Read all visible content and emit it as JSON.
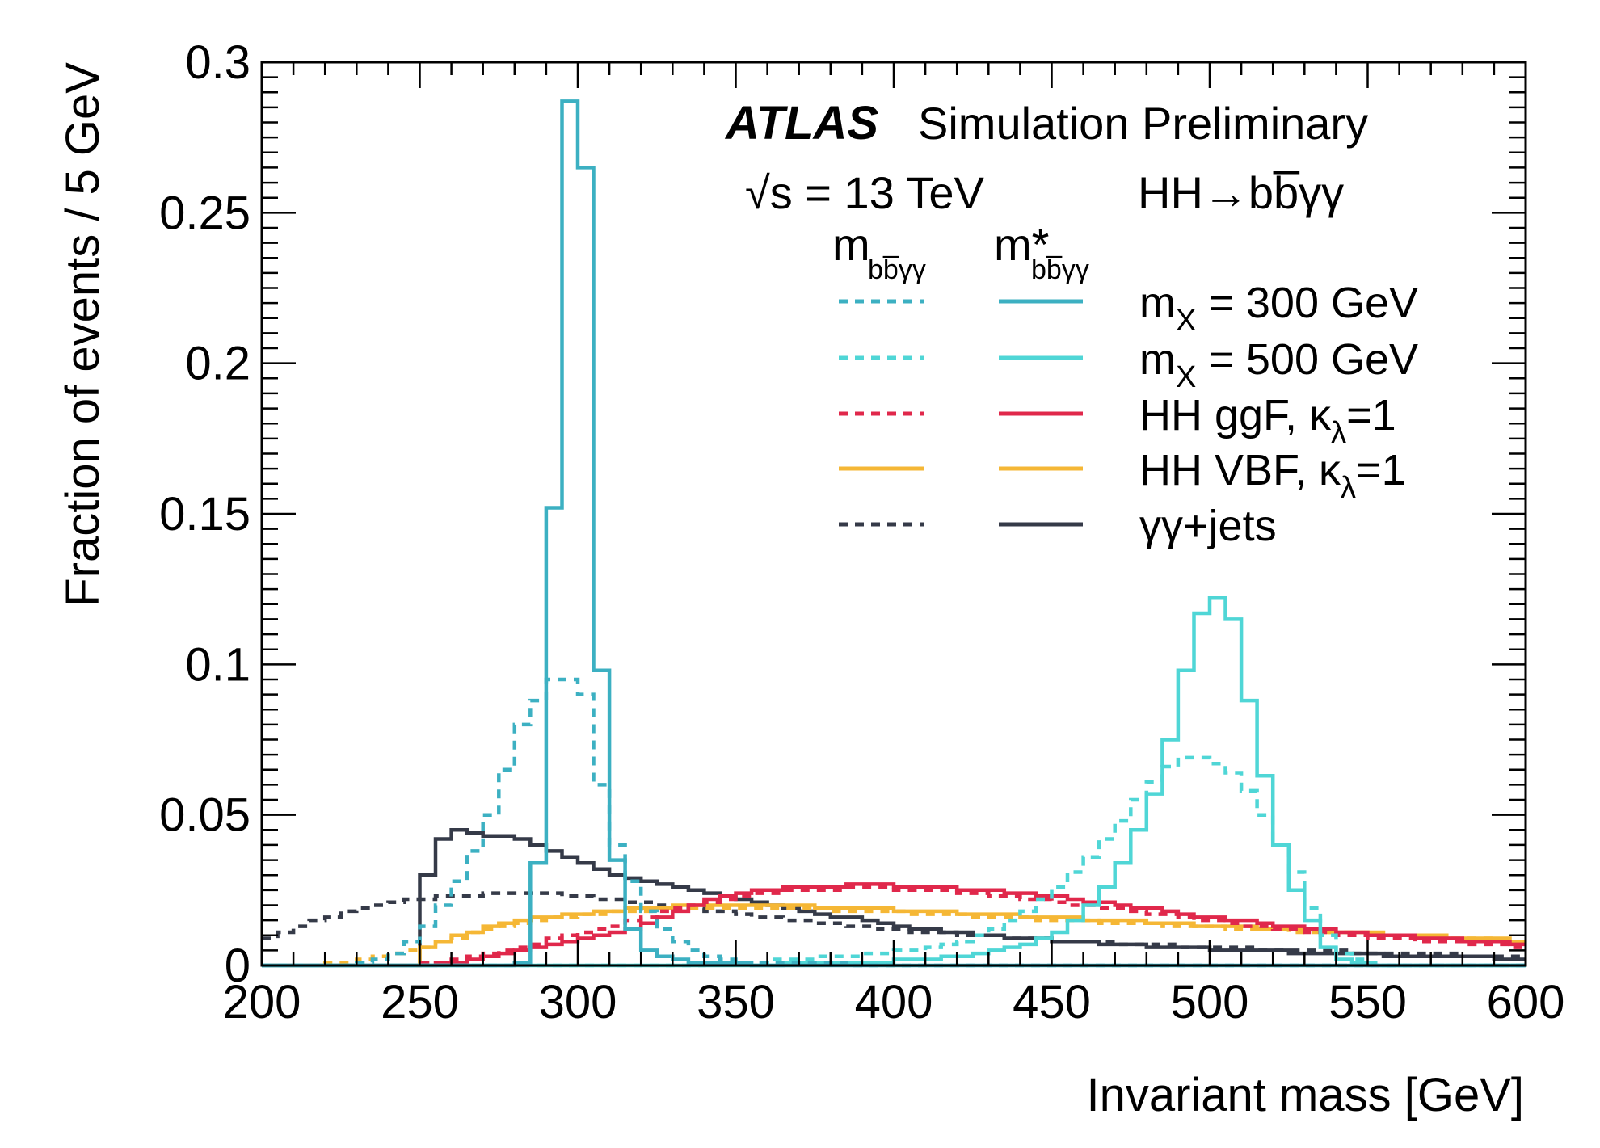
{
  "chart_data": {
    "type": "line",
    "xlabel": "Invariant mass [GeV]",
    "ylabel": "Fraction of events / 5 GeV",
    "xlim": [
      200,
      600
    ],
    "ylim": [
      0,
      0.3
    ],
    "x_ticks": [
      "200",
      "250",
      "300",
      "350",
      "400",
      "450",
      "500",
      "550",
      "600"
    ],
    "y_ticks": [
      "0",
      "0.05",
      "0.1",
      "0.15",
      "0.2",
      "0.25",
      "0.3"
    ],
    "annotations": {
      "atlas": "ATLAS",
      "label": "Simulation Preliminary",
      "energy": "√s = 13 TeV",
      "process": "HH→bb̅γγ",
      "col_dashed": "m",
      "col_dashed_sub": "bb̅γγ",
      "col_solid": "m*",
      "col_solid_sub": "bb̅γγ"
    },
    "legend_position": "top-right",
    "x_centers": [
      202.5,
      207.5,
      212.5,
      217.5,
      222.5,
      227.5,
      232.5,
      237.5,
      242.5,
      247.5,
      252.5,
      257.5,
      262.5,
      267.5,
      272.5,
      277.5,
      282.5,
      287.5,
      292.5,
      297.5,
      302.5,
      307.5,
      312.5,
      317.5,
      322.5,
      327.5,
      332.5,
      337.5,
      342.5,
      347.5,
      352.5,
      357.5,
      362.5,
      367.5,
      372.5,
      377.5,
      382.5,
      387.5,
      392.5,
      397.5,
      402.5,
      407.5,
      412.5,
      417.5,
      422.5,
      427.5,
      432.5,
      437.5,
      442.5,
      447.5,
      452.5,
      457.5,
      462.5,
      467.5,
      472.5,
      477.5,
      482.5,
      487.5,
      492.5,
      497.5,
      502.5,
      507.5,
      512.5,
      517.5,
      522.5,
      527.5,
      532.5,
      537.5,
      542.5,
      547.5,
      552.5,
      557.5,
      562.5,
      567.5,
      572.5,
      577.5,
      582.5,
      587.5,
      592.5,
      597.5
    ],
    "series": [
      {
        "name": "m_X = 300 GeV",
        "legend_main": "m",
        "legend_sub": "X",
        "legend_rest": " = 300 GeV",
        "color": "#3cb0c2",
        "dashed": [
          0,
          0,
          0,
          0,
          0,
          0,
          0.001,
          0.002,
          0.004,
          0.008,
          0.013,
          0.02,
          0.028,
          0.038,
          0.05,
          0.065,
          0.08,
          0.088,
          0.095,
          0.095,
          0.09,
          0.06,
          0.04,
          0.028,
          0.018,
          0.012,
          0.008,
          0.005,
          0.003,
          0.002,
          0.001,
          0.001,
          0.001,
          0.001,
          0.001,
          0.001,
          0.001,
          0,
          0,
          0,
          0,
          0,
          0,
          0,
          0,
          0,
          0,
          0,
          0,
          0,
          0,
          0,
          0,
          0,
          0,
          0,
          0,
          0,
          0,
          0,
          0,
          0,
          0,
          0,
          0,
          0,
          0,
          0,
          0,
          0,
          0,
          0,
          0,
          0,
          0,
          0,
          0,
          0,
          0,
          0
        ],
        "solid": [
          0,
          0,
          0,
          0,
          0,
          0,
          0,
          0,
          0,
          0,
          0,
          0,
          0,
          0,
          0,
          0,
          0.001,
          0.034,
          0.152,
          0.287,
          0.265,
          0.098,
          0.035,
          0.012,
          0.005,
          0.003,
          0.002,
          0.001,
          0.001,
          0.001,
          0.001,
          0,
          0,
          0,
          0,
          0,
          0,
          0,
          0,
          0,
          0,
          0,
          0,
          0,
          0,
          0,
          0,
          0,
          0,
          0,
          0,
          0,
          0,
          0,
          0,
          0,
          0,
          0,
          0,
          0,
          0,
          0,
          0,
          0,
          0,
          0,
          0,
          0,
          0,
          0,
          0,
          0,
          0,
          0,
          0,
          0,
          0,
          0,
          0,
          0
        ]
      },
      {
        "name": "m_X = 500 GeV",
        "legend_main": "m",
        "legend_sub": "X",
        "legend_rest": " = 500 GeV",
        "color": "#4fd6d6",
        "dashed": [
          0,
          0,
          0,
          0,
          0,
          0,
          0,
          0,
          0,
          0,
          0,
          0,
          0,
          0,
          0,
          0,
          0,
          0,
          0,
          0,
          0,
          0,
          0,
          0,
          0,
          0,
          0,
          0,
          0.001,
          0.001,
          0.001,
          0.001,
          0.002,
          0.002,
          0.002,
          0.003,
          0.003,
          0.003,
          0.004,
          0.004,
          0.005,
          0.005,
          0.006,
          0.007,
          0.008,
          0.01,
          0.012,
          0.015,
          0.018,
          0.022,
          0.026,
          0.031,
          0.036,
          0.042,
          0.048,
          0.055,
          0.061,
          0.066,
          0.069,
          0.069,
          0.067,
          0.064,
          0.058,
          0.05,
          0.04,
          0.031,
          0.019,
          0.01,
          0.004,
          0.002,
          0.001,
          0,
          0,
          0,
          0,
          0,
          0,
          0,
          0,
          0
        ],
        "solid": [
          0,
          0,
          0,
          0,
          0,
          0,
          0,
          0,
          0,
          0,
          0,
          0,
          0,
          0,
          0,
          0,
          0,
          0,
          0,
          0,
          0,
          0,
          0,
          0,
          0,
          0,
          0,
          0,
          0,
          0,
          0,
          0,
          0,
          0.001,
          0.001,
          0.001,
          0.001,
          0.001,
          0.001,
          0.001,
          0.002,
          0.002,
          0.002,
          0.003,
          0.003,
          0.004,
          0.005,
          0.006,
          0.007,
          0.009,
          0.011,
          0.015,
          0.02,
          0.026,
          0.034,
          0.045,
          0.057,
          0.075,
          0.098,
          0.117,
          0.122,
          0.115,
          0.088,
          0.063,
          0.04,
          0.025,
          0.015,
          0.006,
          0.002,
          0.001,
          0,
          0,
          0,
          0,
          0,
          0,
          0,
          0,
          0,
          0
        ]
      },
      {
        "name": "HH ggF, κ_λ=1",
        "legend_main": "HH ggF, κ",
        "legend_sub": "λ",
        "legend_rest": "=1",
        "color": "#e0284b",
        "dashed": [
          0,
          0,
          0,
          0,
          0,
          0,
          0,
          0,
          0,
          0,
          0.001,
          0.001,
          0.002,
          0.003,
          0.004,
          0.005,
          0.006,
          0.007,
          0.009,
          0.01,
          0.011,
          0.012,
          0.013,
          0.015,
          0.016,
          0.018,
          0.019,
          0.02,
          0.021,
          0.022,
          0.023,
          0.024,
          0.024,
          0.025,
          0.025,
          0.025,
          0.025,
          0.026,
          0.026,
          0.026,
          0.025,
          0.025,
          0.025,
          0.025,
          0.024,
          0.024,
          0.023,
          0.023,
          0.022,
          0.022,
          0.021,
          0.02,
          0.02,
          0.019,
          0.019,
          0.018,
          0.017,
          0.017,
          0.016,
          0.015,
          0.015,
          0.014,
          0.013,
          0.013,
          0.012,
          0.012,
          0.011,
          0.011,
          0.01,
          0.01,
          0.009,
          0.009,
          0.009,
          0.008,
          0.008,
          0.008,
          0.007,
          0.007,
          0.007,
          0.006
        ],
        "solid": [
          0,
          0,
          0,
          0,
          0,
          0,
          0,
          0,
          0,
          0,
          0,
          0.001,
          0.001,
          0.002,
          0.003,
          0.004,
          0.005,
          0.006,
          0.007,
          0.008,
          0.009,
          0.01,
          0.011,
          0.012,
          0.014,
          0.016,
          0.018,
          0.02,
          0.022,
          0.023,
          0.024,
          0.025,
          0.025,
          0.026,
          0.026,
          0.026,
          0.026,
          0.027,
          0.027,
          0.027,
          0.026,
          0.026,
          0.026,
          0.026,
          0.025,
          0.025,
          0.025,
          0.024,
          0.024,
          0.023,
          0.023,
          0.022,
          0.021,
          0.021,
          0.02,
          0.019,
          0.019,
          0.018,
          0.017,
          0.016,
          0.016,
          0.015,
          0.015,
          0.014,
          0.013,
          0.013,
          0.012,
          0.012,
          0.011,
          0.011,
          0.01,
          0.01,
          0.01,
          0.009,
          0.009,
          0.009,
          0.008,
          0.008,
          0.008,
          0.007
        ]
      },
      {
        "name": "HH VBF, κ_λ=1",
        "legend_main": "HH VBF, κ",
        "legend_sub": "λ",
        "legend_rest": "=1",
        "color": "#f5b735",
        "dashed": [
          0,
          0,
          0,
          0,
          0.001,
          0.001,
          0.002,
          0.003,
          0.004,
          0.005,
          0.006,
          0.008,
          0.009,
          0.011,
          0.012,
          0.013,
          0.014,
          0.015,
          0.016,
          0.016,
          0.017,
          0.017,
          0.018,
          0.018,
          0.018,
          0.019,
          0.019,
          0.019,
          0.019,
          0.019,
          0.019,
          0.019,
          0.019,
          0.019,
          0.019,
          0.019,
          0.018,
          0.018,
          0.018,
          0.018,
          0.018,
          0.017,
          0.017,
          0.017,
          0.017,
          0.016,
          0.016,
          0.016,
          0.016,
          0.015,
          0.015,
          0.015,
          0.015,
          0.014,
          0.014,
          0.014,
          0.014,
          0.013,
          0.013,
          0.013,
          0.013,
          0.012,
          0.012,
          0.012,
          0.012,
          0.011,
          0.011,
          0.011,
          0.011,
          0.011,
          0.01,
          0.01,
          0.01,
          0.01,
          0.009,
          0.009,
          0.009,
          0.009,
          0.008,
          0.008
        ],
        "solid": [
          0,
          0,
          0,
          0,
          0,
          0,
          0,
          0,
          0,
          0,
          0.006,
          0.008,
          0.01,
          0.011,
          0.013,
          0.014,
          0.015,
          0.016,
          0.016,
          0.017,
          0.017,
          0.018,
          0.018,
          0.019,
          0.019,
          0.019,
          0.02,
          0.02,
          0.02,
          0.02,
          0.02,
          0.02,
          0.02,
          0.02,
          0.02,
          0.019,
          0.019,
          0.019,
          0.019,
          0.019,
          0.018,
          0.018,
          0.018,
          0.018,
          0.017,
          0.017,
          0.017,
          0.017,
          0.016,
          0.016,
          0.016,
          0.016,
          0.015,
          0.015,
          0.015,
          0.015,
          0.014,
          0.014,
          0.014,
          0.013,
          0.013,
          0.013,
          0.013,
          0.012,
          0.012,
          0.012,
          0.012,
          0.011,
          0.011,
          0.011,
          0.011,
          0.01,
          0.01,
          0.01,
          0.01,
          0.009,
          0.009,
          0.009,
          0.009,
          0.008
        ]
      },
      {
        "name": "γγ+jets",
        "legend_main": "γγ+jets",
        "legend_sub": "",
        "legend_rest": "",
        "color": "#353a48",
        "dashed": [
          0.009,
          0.011,
          0.013,
          0.015,
          0.016,
          0.018,
          0.019,
          0.02,
          0.021,
          0.022,
          0.022,
          0.023,
          0.023,
          0.023,
          0.024,
          0.024,
          0.024,
          0.024,
          0.024,
          0.023,
          0.023,
          0.022,
          0.022,
          0.021,
          0.021,
          0.02,
          0.019,
          0.019,
          0.018,
          0.018,
          0.017,
          0.016,
          0.016,
          0.015,
          0.015,
          0.014,
          0.014,
          0.013,
          0.013,
          0.012,
          0.012,
          0.011,
          0.011,
          0.011,
          0.01,
          0.01,
          0.01,
          0.009,
          0.009,
          0.009,
          0.008,
          0.008,
          0.008,
          0.008,
          0.007,
          0.007,
          0.007,
          0.007,
          0.006,
          0.006,
          0.006,
          0.006,
          0.006,
          0.005,
          0.005,
          0.005,
          0.005,
          0.005,
          0.005,
          0.004,
          0.004,
          0.004,
          0.004,
          0.004,
          0.004,
          0.004,
          0.003,
          0.003,
          0.003,
          0.003
        ],
        "solid": [
          0,
          0,
          0,
          0,
          0,
          0,
          0,
          0,
          0,
          0,
          0.03,
          0.042,
          0.045,
          0.044,
          0.043,
          0.043,
          0.042,
          0.04,
          0.038,
          0.036,
          0.034,
          0.032,
          0.03,
          0.029,
          0.028,
          0.027,
          0.026,
          0.025,
          0.024,
          0.023,
          0.022,
          0.021,
          0.02,
          0.019,
          0.018,
          0.017,
          0.016,
          0.016,
          0.015,
          0.014,
          0.013,
          0.012,
          0.012,
          0.011,
          0.011,
          0.01,
          0.01,
          0.009,
          0.009,
          0.009,
          0.008,
          0.008,
          0.008,
          0.007,
          0.007,
          0.007,
          0.006,
          0.006,
          0.006,
          0.006,
          0.005,
          0.005,
          0.005,
          0.005,
          0.005,
          0.004,
          0.004,
          0.004,
          0.004,
          0.004,
          0.004,
          0.003,
          0.003,
          0.003,
          0.003,
          0.003,
          0.003,
          0.003,
          0.002,
          0.002
        ]
      }
    ]
  }
}
